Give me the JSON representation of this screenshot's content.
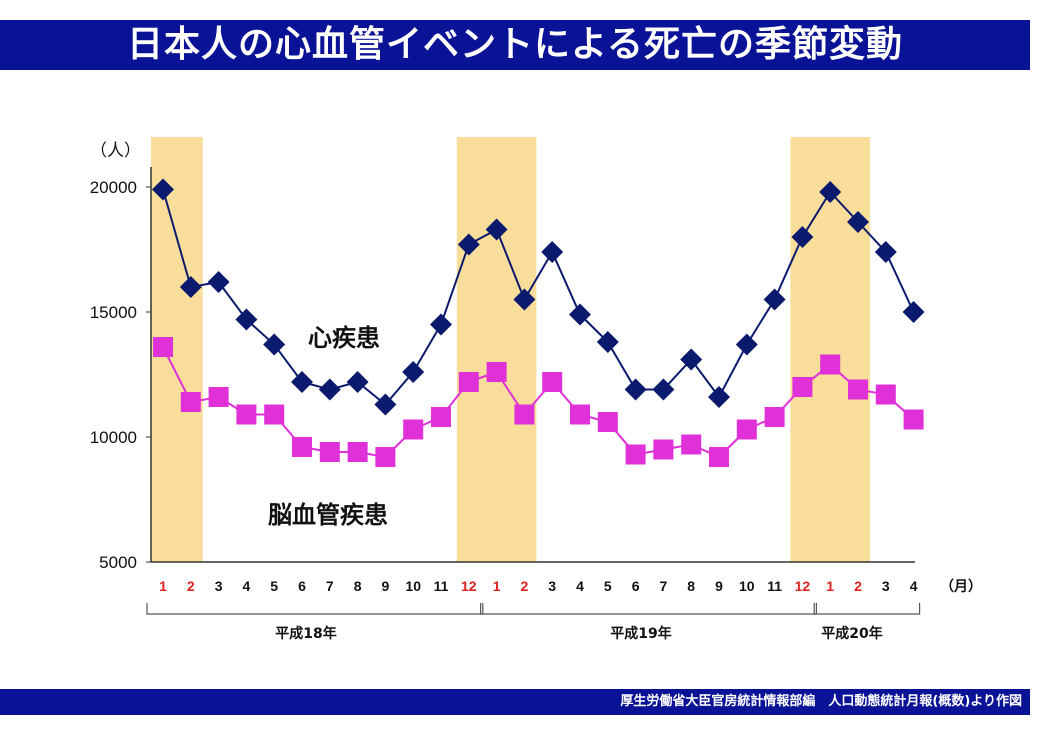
{
  "title": "日本人の心血管イベントによる死亡の季節変動",
  "footer": "厚生労働省大臣官房統計情報部編　人口動態統計月報(概数)より作図",
  "chart_data": {
    "type": "line",
    "y_unit": "（人）",
    "x_unit": "（月）",
    "ylim": [
      5000,
      20000
    ],
    "yticks": [
      5000,
      10000,
      15000,
      20000
    ],
    "months": [
      1,
      2,
      3,
      4,
      5,
      6,
      7,
      8,
      9,
      10,
      11,
      12,
      1,
      2,
      3,
      4,
      5,
      6,
      7,
      8,
      9,
      10,
      11,
      12,
      1,
      2,
      3,
      4
    ],
    "winter_month_color": "#e0201c",
    "other_month_color": "#111111",
    "years": [
      "平成18年",
      "平成19年",
      "平成20年"
    ],
    "winter_shading_color": "#f7d27a",
    "series": [
      {
        "name": "心疾患",
        "color": "#0c1a6e",
        "marker": "diamond",
        "values": [
          19900,
          16000,
          16200,
          14700,
          13700,
          12200,
          11900,
          12200,
          11300,
          12600,
          14500,
          17700,
          18300,
          15500,
          17400,
          14900,
          13800,
          11900,
          11900,
          13100,
          11600,
          13700,
          15500,
          18000,
          19800,
          18600,
          17400,
          15000
        ]
      },
      {
        "name": "脳血管疾患",
        "color": "#e030d8",
        "marker": "square",
        "values": [
          13600,
          11400,
          11600,
          10900,
          10900,
          9600,
          9400,
          9400,
          9200,
          10300,
          10800,
          12200,
          12600,
          10900,
          12200,
          10900,
          10600,
          9300,
          9500,
          9700,
          9200,
          10300,
          10800,
          12000,
          12900,
          11900,
          11700,
          10700
        ]
      }
    ]
  }
}
